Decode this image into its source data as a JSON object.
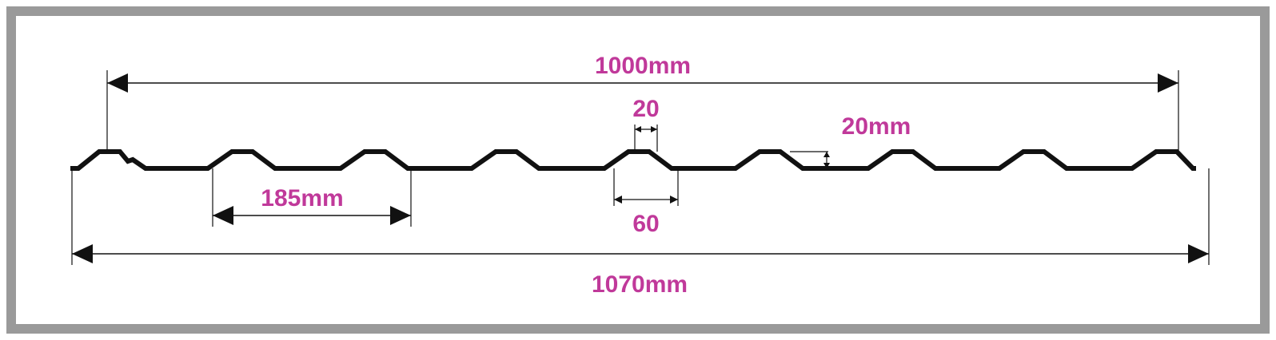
{
  "colors": {
    "frame": "#9a9a9a",
    "profile": "#111111",
    "dimension_line": "#111111",
    "label": "#c0399a"
  },
  "labels": {
    "cover_width": "1000mm",
    "total_width": "1070mm",
    "pitch": "185mm",
    "rib_top_width": "20",
    "rib_base_width": "60",
    "rib_height": "20mm"
  }
}
